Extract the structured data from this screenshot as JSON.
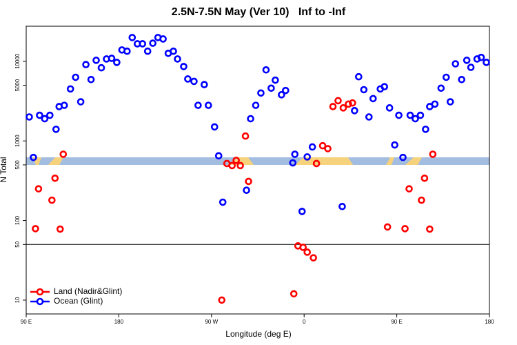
{
  "chart_data": {
    "type": "scatter",
    "title": "2.5N-7.5N May (Ver 10)   Inf to -Inf",
    "x_label": "Longitude (deg E)",
    "y_label": "N Total",
    "xlim": [
      90,
      540
    ],
    "xticks": [
      {
        "value": 90,
        "label": "90 E"
      },
      {
        "value": 180,
        "label": "180"
      },
      {
        "value": 270,
        "label": "90 W"
      },
      {
        "value": 360,
        "label": "0"
      },
      {
        "value": 450,
        "label": "90 E"
      },
      {
        "value": 540,
        "label": "180"
      }
    ],
    "ylim": [
      6.7,
      27600
    ],
    "yticks": [
      10,
      50,
      100,
      500,
      1000,
      5000,
      10000
    ],
    "log_y": true,
    "hline": 50,
    "legend": "bottom-left",
    "series": [
      {
        "name": "Land (Nadir&Glint)",
        "color": "#ff0000",
        "x": [
          99,
          102,
          115,
          118,
          123,
          126,
          280,
          285,
          290,
          294,
          298,
          303,
          306,
          350,
          354,
          359,
          363,
          369,
          372,
          378,
          383,
          388,
          393,
          398,
          403,
          407,
          441,
          458,
          462,
          474,
          477,
          482,
          485
        ],
        "values": [
          79,
          250,
          180,
          340,
          78,
          680,
          10,
          520,
          490,
          570,
          490,
          1150,
          310,
          12,
          48,
          46,
          40,
          34,
          520,
          870,
          800,
          2700,
          3200,
          2600,
          2900,
          3000,
          83,
          79,
          250,
          180,
          340,
          78,
          680
        ]
      },
      {
        "name": "Ocean (Glint)",
        "color": "#0000ff",
        "x": [
          93,
          97,
          103,
          108,
          113,
          119,
          122,
          127,
          133,
          138,
          143,
          148,
          153,
          158,
          163,
          168,
          173,
          178,
          183,
          188,
          193,
          198,
          203,
          208,
          213,
          218,
          223,
          228,
          233,
          237,
          243,
          247,
          253,
          257,
          263,
          267,
          273,
          277,
          281,
          304,
          308,
          313,
          318,
          323,
          328,
          332,
          338,
          342,
          349,
          351,
          358,
          363,
          368,
          397,
          409,
          413,
          418,
          423,
          427,
          434,
          438,
          443,
          448,
          452,
          456,
          463,
          468,
          473,
          478,
          482,
          487,
          493,
          498,
          502,
          507,
          513,
          518,
          522,
          528,
          532,
          537
        ],
        "values": [
          2000,
          620,
          2100,
          1900,
          2100,
          1400,
          2700,
          2800,
          4500,
          6300,
          3100,
          9100,
          5900,
          10300,
          8300,
          10700,
          10900,
          9700,
          13900,
          13400,
          19900,
          16600,
          16600,
          13400,
          16900,
          19900,
          19100,
          12600,
          13400,
          10700,
          8600,
          6000,
          5600,
          2800,
          5100,
          2800,
          1500,
          650,
          170,
          240,
          1900,
          2800,
          4000,
          7800,
          4600,
          5800,
          3800,
          4300,
          530,
          680,
          130,
          630,
          840,
          150,
          2400,
          6400,
          4400,
          2000,
          3400,
          4500,
          4800,
          2600,
          890,
          2100,
          620,
          2100,
          1900,
          2100,
          1400,
          2700,
          2900,
          4600,
          6300,
          3100,
          9300,
          5900,
          10300,
          8400,
          10700,
          11200,
          9700
        ]
      }
    ]
  }
}
